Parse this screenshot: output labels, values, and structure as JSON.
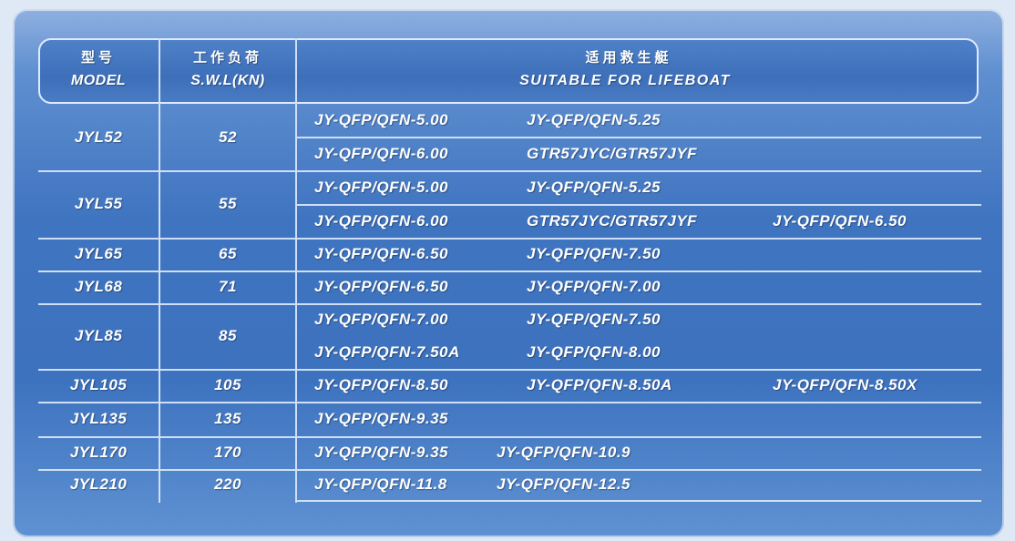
{
  "header": {
    "model_cn": "型号",
    "model_en": "MODEL",
    "swl_cn": "工作负荷",
    "swl_en": "S.W.L(KN)",
    "lifeboat_cn": "适用救生艇",
    "lifeboat_en": "SUITABLE FOR LIFEBOAT"
  },
  "rows": [
    {
      "model": "JYL52",
      "swl": "52",
      "lines": [
        [
          "JY-QFP/QFN-5.00",
          "JY-QFP/QFN-5.25"
        ],
        [
          "JY-QFP/QFN-6.00",
          "GTR57JYC/GTR57JYF"
        ]
      ]
    },
    {
      "model": "JYL55",
      "swl": "55",
      "lines": [
        [
          "JY-QFP/QFN-5.00",
          "JY-QFP/QFN-5.25"
        ],
        [
          "JY-QFP/QFN-6.00",
          "GTR57JYC/GTR57JYF",
          "JY-QFP/QFN-6.50"
        ]
      ]
    },
    {
      "model": "JYL65",
      "swl": "65",
      "lines": [
        [
          "JY-QFP/QFN-6.50",
          "JY-QFP/QFN-7.50"
        ]
      ]
    },
    {
      "model": "JYL68",
      "swl": "71",
      "lines": [
        [
          "JY-QFP/QFN-6.50",
          "JY-QFP/QFN-7.00"
        ]
      ]
    },
    {
      "model": "JYL85",
      "swl": "85",
      "lines": [
        [
          "JY-QFP/QFN-7.00",
          "JY-QFP/QFN-7.50"
        ],
        [
          "JY-QFP/QFN-7.50A",
          "JY-QFP/QFN-8.00"
        ]
      ]
    },
    {
      "model": "JYL105",
      "swl": "105",
      "lines": [
        [
          "JY-QFP/QFN-8.50",
          "JY-QFP/QFN-8.50A",
          "JY-QFP/QFN-8.50X"
        ]
      ]
    },
    {
      "model": "JYL135",
      "swl": "135",
      "lines": [
        [
          "JY-QFP/QFN-9.35"
        ]
      ]
    },
    {
      "model": "JYL170",
      "swl": "170",
      "lines": [
        [
          "JY-QFP/QFN-9.35",
          "JY-QFP/QFN-10.9"
        ]
      ]
    },
    {
      "model": "JYL210",
      "swl": "220",
      "lines": [
        [
          "JY-QFP/QFN-11.8",
          "JY-QFP/QFN-12.5"
        ]
      ]
    }
  ],
  "colors": {
    "panel": "#3f74c0",
    "lines": "#cfdff5",
    "text": "#ffffff"
  }
}
